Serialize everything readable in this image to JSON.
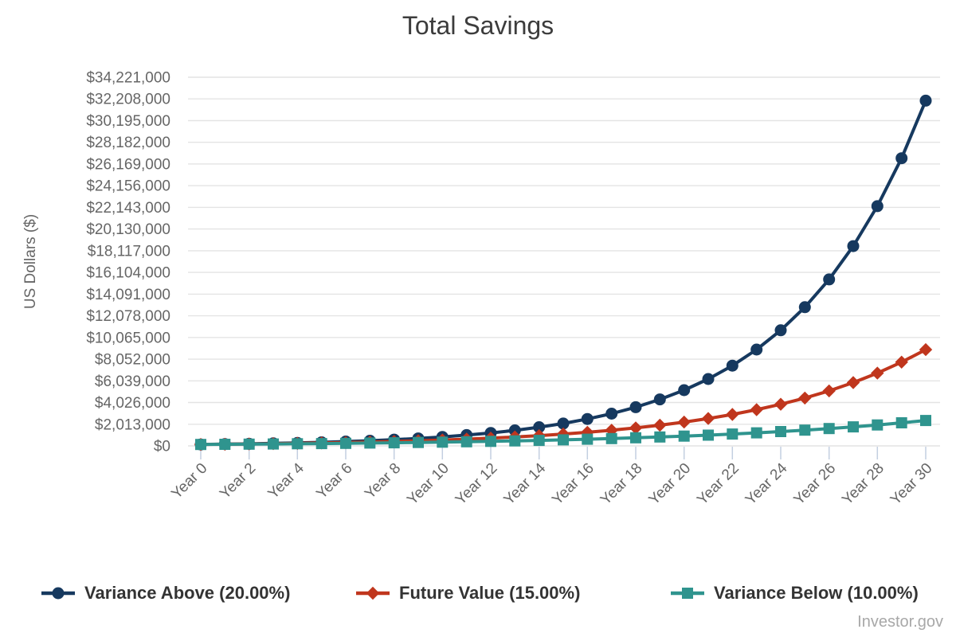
{
  "page": {
    "source": "Investor.gov"
  },
  "theme": {
    "background": "#ffffff",
    "title_color": "#3c3c3c",
    "grid_color": "#e4e4e4",
    "axis_text_color": "#666666",
    "x_tick_color": "#c3cfe0",
    "legend_text_color": "#333333",
    "source_text_color": "#a8a8a8"
  },
  "chart_data": {
    "type": "line",
    "title": "Total Savings",
    "xlabel": "",
    "ylabel": "US Dollars ($)",
    "ylim": [
      0,
      34221000
    ],
    "grid": "horizontal-only",
    "legend_position": "bottom",
    "years": [
      0,
      1,
      2,
      3,
      4,
      5,
      6,
      7,
      8,
      9,
      10,
      11,
      12,
      13,
      14,
      15,
      16,
      17,
      18,
      19,
      20,
      21,
      22,
      23,
      24,
      25,
      26,
      27,
      28,
      29,
      30
    ],
    "x_tick_years": [
      0,
      2,
      4,
      6,
      8,
      10,
      12,
      14,
      16,
      18,
      20,
      22,
      24,
      26,
      28,
      30
    ],
    "x_tick_labels": [
      "Year 0",
      "Year 2",
      "Year 4",
      "Year 6",
      "Year 8",
      "Year 10",
      "Year 12",
      "Year 14",
      "Year 16",
      "Year 18",
      "Year 20",
      "Year 22",
      "Year 24",
      "Year 26",
      "Year 28",
      "Year 30"
    ],
    "y_tick_values": [
      0,
      2013000,
      4026000,
      6039000,
      8052000,
      10065000,
      12078000,
      14091000,
      16104000,
      18117000,
      20130000,
      22143000,
      24156000,
      26169000,
      28182000,
      30195000,
      32208000,
      34221000
    ],
    "y_tick_labels": [
      "$0",
      "$2,013,000",
      "$4,026,000",
      "$6,039,000",
      "$8,052,000",
      "$10,065,000",
      "$12,078,000",
      "$14,091,000",
      "$16,104,000",
      "$18,117,000",
      "$20,130,000",
      "$22,143,000",
      "$24,156,000",
      "$26,169,000",
      "$28,182,000",
      "$30,195,000",
      "$32,208,000",
      "$34,221,000"
    ],
    "series": [
      {
        "name": "Variance Above (20.00%)",
        "rate_percent": 20.0,
        "color": "#16395f",
        "marker": "circle",
        "values": [
          135000,
          162000,
          194400,
          233280,
          279936,
          335923,
          403108,
          483729,
          580475,
          696570,
          835884,
          1003061,
          1203674,
          1444408,
          1733290,
          2079948,
          2495937,
          2995125,
          3594150,
          4312980,
          5175576,
          6210691,
          7452829,
          8943395,
          10732074,
          12878489,
          15454187,
          18545025,
          22254029,
          26704835,
          32045802
        ]
      },
      {
        "name": "Future Value (15.00%)",
        "rate_percent": 15.0,
        "color": "#c0361d",
        "marker": "diamond",
        "values": [
          135000,
          155250,
          178538,
          205318,
          236116,
          271533,
          312263,
          359103,
          412968,
          474913,
          546150,
          628073,
          722284,
          830626,
          955220,
          1098503,
          1263279,
          1452771,
          1670686,
          1921289,
          2209483,
          2540905,
          2922041,
          3360347,
          3864399,
          4444059,
          5110667,
          5877268,
          6758858,
          7772686,
          8938589
        ]
      },
      {
        "name": "Variance Below (10.00%)",
        "rate_percent": 10.0,
        "color": "#2f948e",
        "marker": "square",
        "values": [
          135000,
          148500,
          163350,
          179685,
          197654,
          217419,
          239161,
          263077,
          289384,
          318323,
          350155,
          385171,
          423688,
          466057,
          512662,
          563929,
          620321,
          682353,
          750589,
          825648,
          908212,
          999034,
          1098937,
          1208831,
          1329714,
          1462685,
          1608954,
          1769849,
          1946834,
          2141518,
          2355669
        ]
      }
    ]
  }
}
